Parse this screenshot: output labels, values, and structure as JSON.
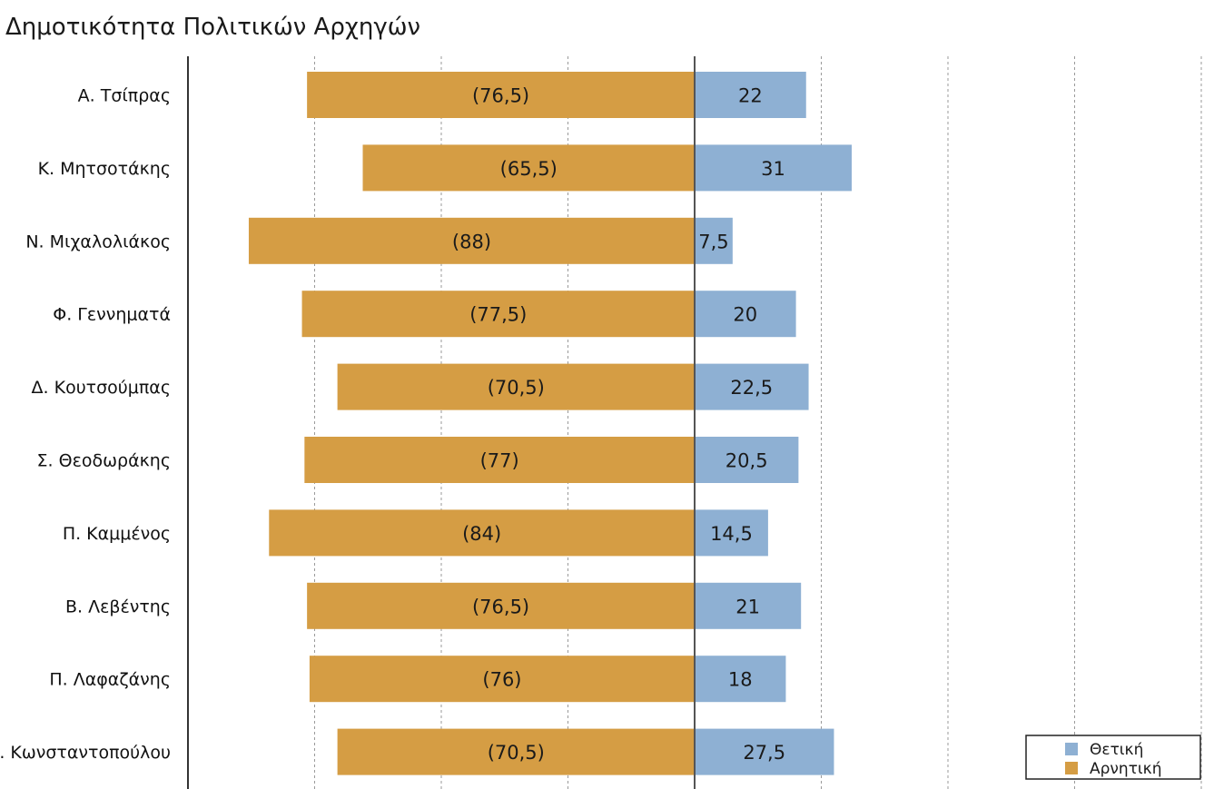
{
  "chart_data": {
    "type": "bar",
    "orientation": "horizontal",
    "stacked": "diverging",
    "title": "Δημοτικότητα Πολιτικών Αρχηγών",
    "xlabel": "",
    "ylabel": "",
    "categories": [
      "Α. Τσίπρας",
      "Κ. Μητσοτάκης",
      "Ν. Μιχαλολιάκος",
      "Φ. Γεννηματά",
      "Δ. Κουτσούμπας",
      "Σ. Θεοδωράκης",
      "Π. Καμμένος",
      "Β. Λεβέντης",
      "Π. Λαφαζάνης",
      "Ζ. Κωνσταντοπούλου"
    ],
    "series": [
      {
        "name": "Θετική",
        "color": "#8eb0d3",
        "values": [
          22,
          31,
          7.5,
          20,
          22.5,
          20.5,
          14.5,
          21,
          18,
          27.5
        ],
        "labels": [
          "22",
          "31",
          "7,5",
          "20",
          "22,5",
          "20,5",
          "14,5",
          "21",
          "18",
          "27,5"
        ]
      },
      {
        "name": "Αρνητική",
        "color": "#d59d44",
        "values": [
          -76.5,
          -65.5,
          -88,
          -77.5,
          -70.5,
          -77,
          -84,
          -76.5,
          -76,
          -70.5
        ],
        "labels": [
          "(76,5)",
          "(65,5)",
          "(88)",
          "(77,5)",
          "(70,5)",
          "(77)",
          "(84)",
          "(76,5)",
          "(76)",
          "(70,5)"
        ]
      }
    ],
    "xlim": [
      -100,
      100
    ],
    "grid_step": 25,
    "grid": true,
    "legend_position": "bottom-right"
  }
}
